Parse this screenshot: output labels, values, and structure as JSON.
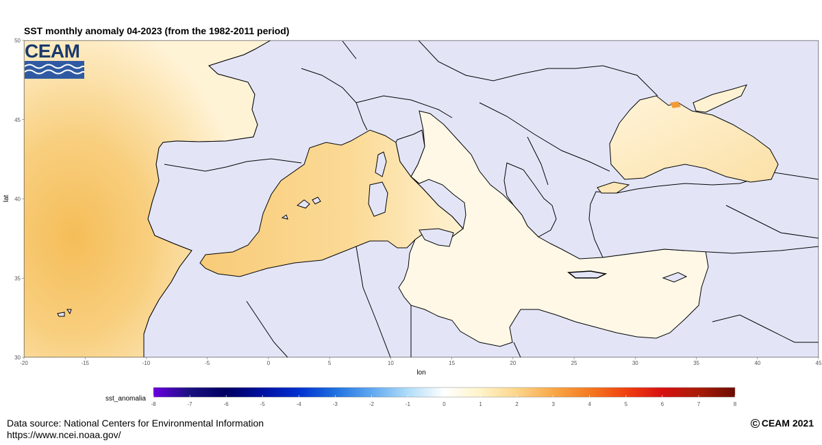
{
  "title": "SST monthly anomaly 04-2023 (from the 1982-2011 period)",
  "logo_text": "CEAM",
  "axes": {
    "xlabel": "lon",
    "ylabel": "lat",
    "lon_ticks": [
      "-20",
      "-15",
      "-10",
      "-5",
      "0",
      "5",
      "10",
      "15",
      "20",
      "25",
      "30",
      "35",
      "40",
      "45"
    ],
    "lat_ticks": [
      "30",
      "35",
      "40",
      "45",
      "50"
    ],
    "lon_range": [
      -20,
      45
    ],
    "lat_range": [
      30,
      50
    ]
  },
  "colors": {
    "land": "#e3e5f7",
    "ocean_anomaly_low": "#fffdf4",
    "ocean_anomaly_mid": "#fde7b3",
    "ocean_anomaly_high": "#f5bd58",
    "coastline": "#000000"
  },
  "legend": {
    "title": "sst_anomalia",
    "ticks": [
      "-8",
      "-7",
      "-6",
      "-5",
      "-4",
      "-3",
      "-2",
      "-1",
      "0",
      "1",
      "2",
      "3",
      "4",
      "5",
      "6",
      "7",
      "8"
    ],
    "colors": [
      "#6a00e0",
      "#1a1080",
      "#000060",
      "#0010a0",
      "#0030d0",
      "#2070e0",
      "#60a8f0",
      "#b0ddf8",
      "#ffffff",
      "#fff3c8",
      "#fbd58a",
      "#f8a848",
      "#f57a20",
      "#f04010",
      "#d81010",
      "#a81c08",
      "#6e0c04"
    ]
  },
  "footer": {
    "source": "Data source: National Centers for Environmental Information",
    "url": "https://www.ncei.noaa.gov/",
    "copyright": "CEAM 2021",
    "copyright_symbol": "C"
  }
}
